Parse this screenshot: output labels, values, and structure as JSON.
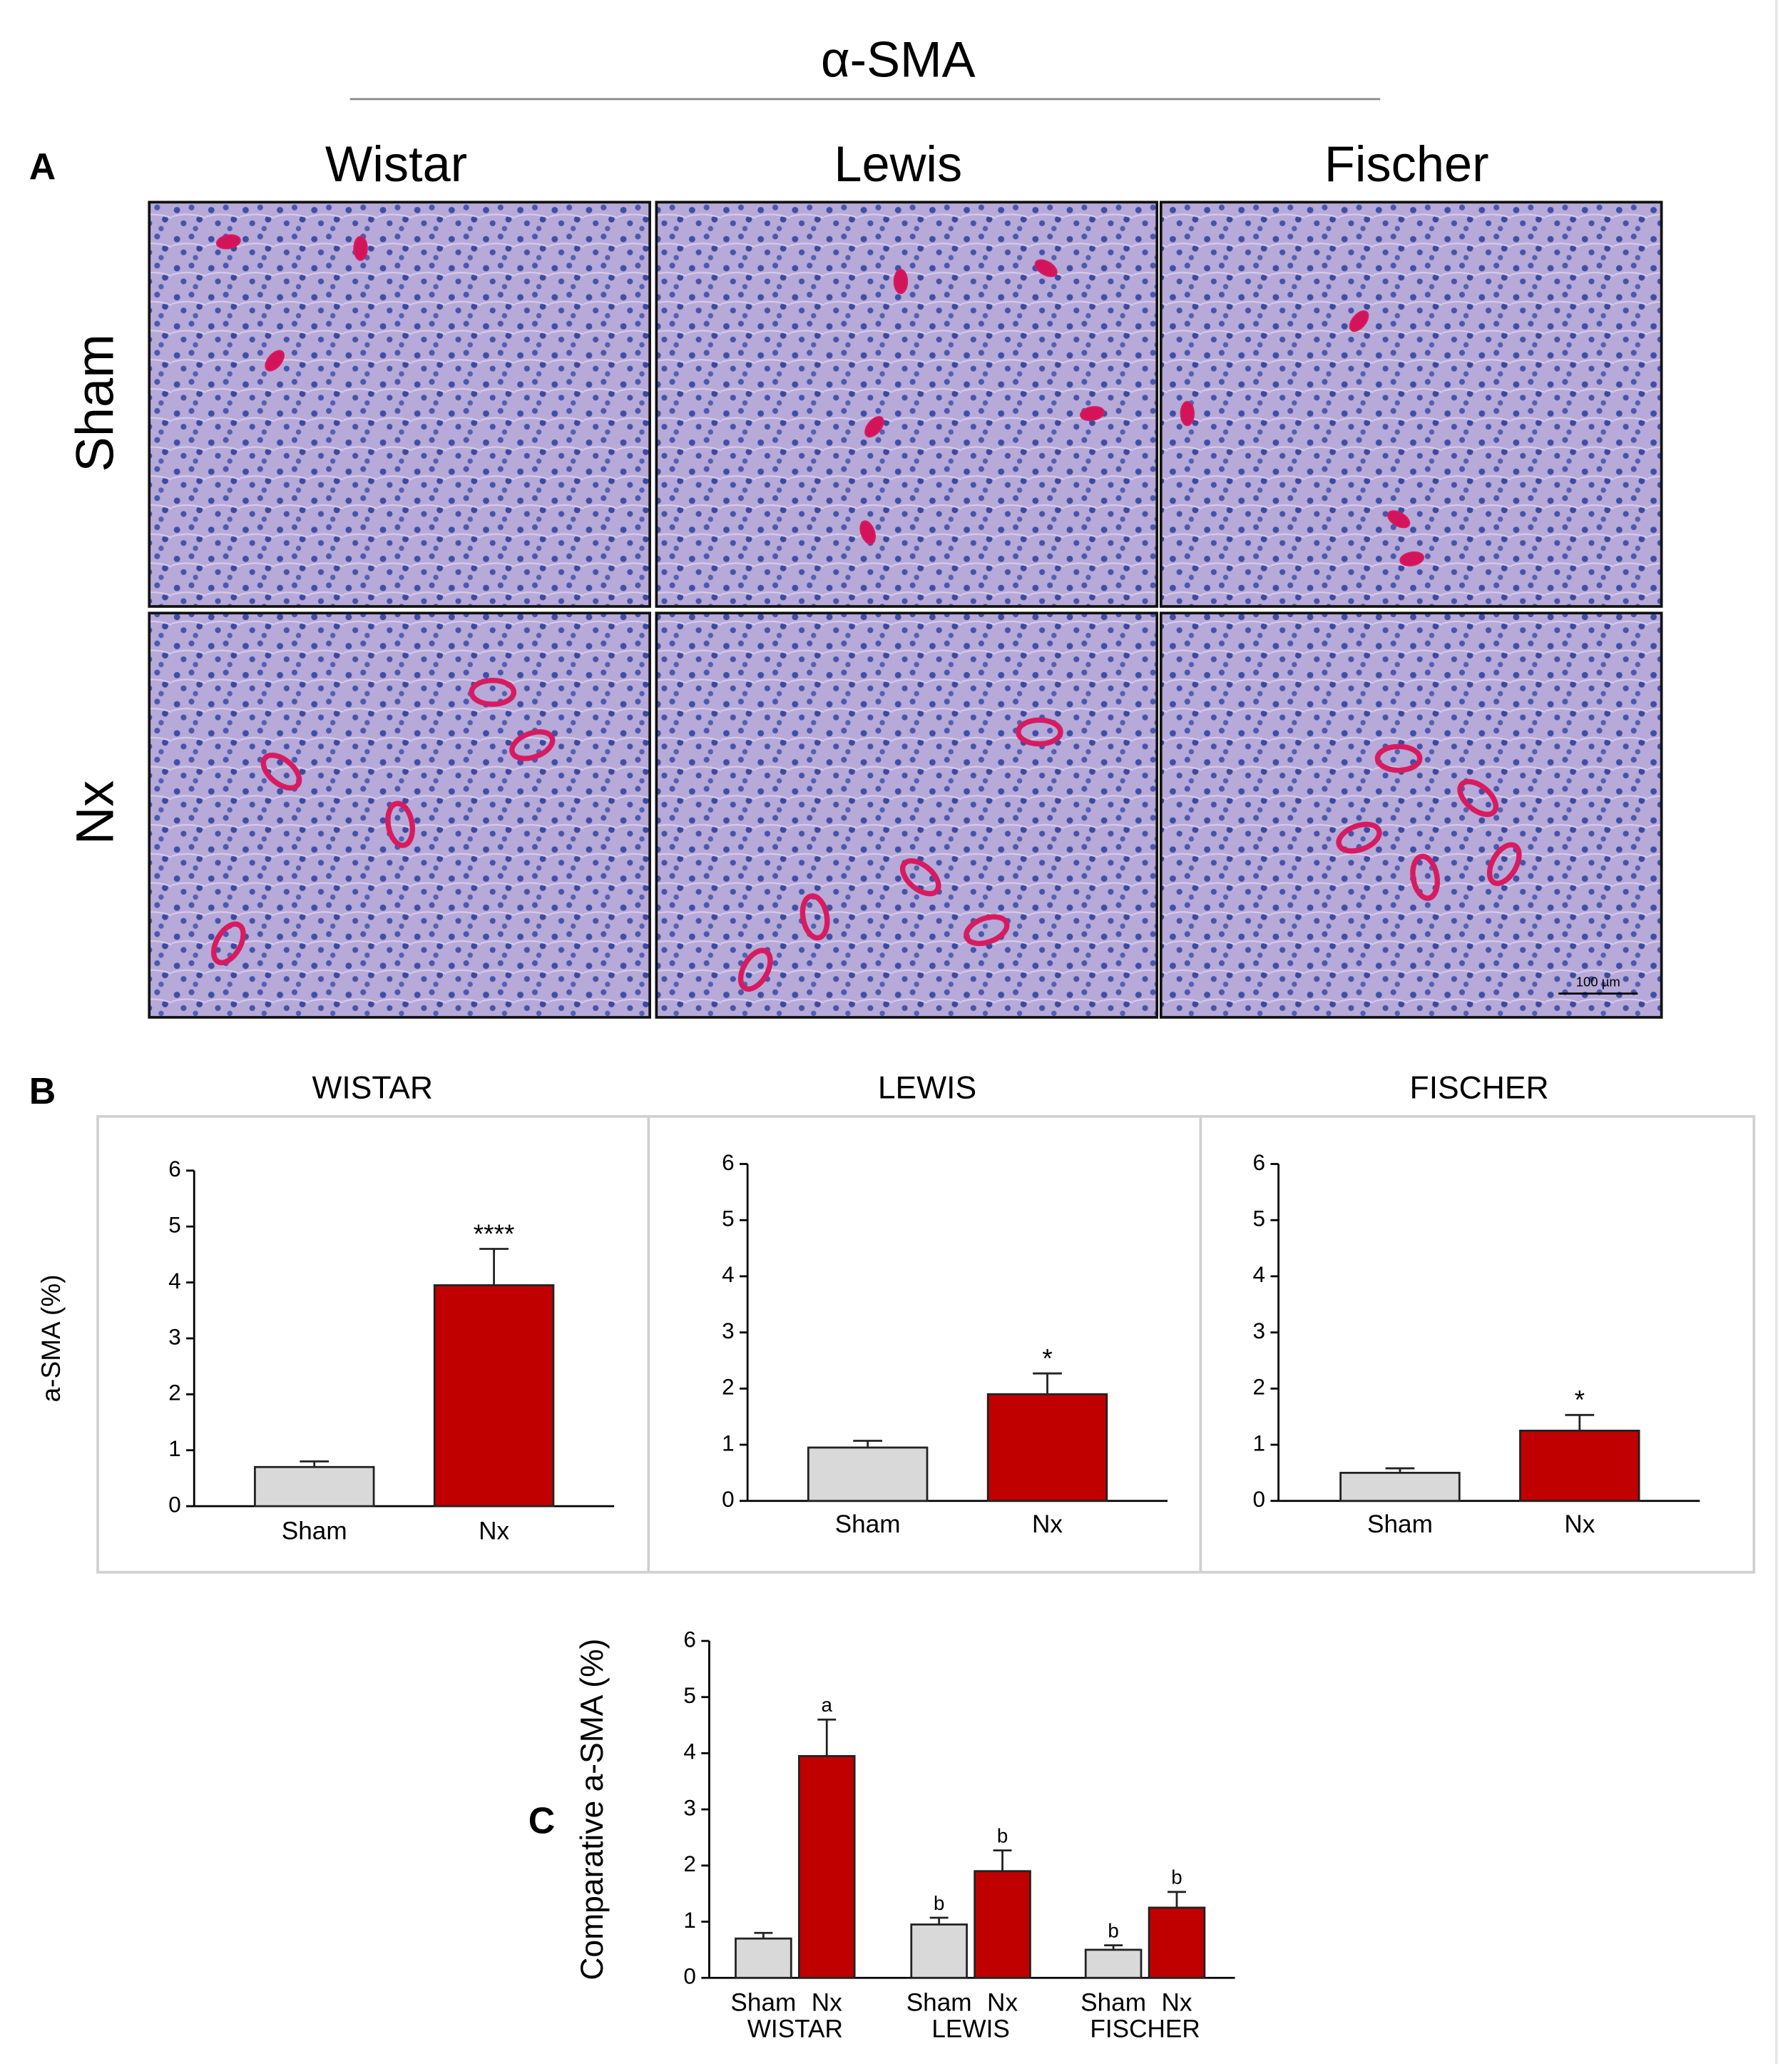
{
  "figure": {
    "title": "α-SMA",
    "panels": [
      "A",
      "B",
      "C"
    ],
    "columns": [
      "Wistar",
      "Lewis",
      "Fischer"
    ],
    "rows": [
      "Sham",
      "Nx"
    ],
    "scale_bar": "100 µm"
  },
  "chart_data": [
    {
      "type": "bar",
      "title": "WISTAR",
      "ylabel": "a-SMA (%)",
      "categories": [
        "Sham",
        "Nx"
      ],
      "values": [
        0.7,
        3.95
      ],
      "errors": [
        0.1,
        0.65
      ],
      "colors": [
        "#d9d9d9",
        "#c00000"
      ],
      "annotations": [
        null,
        "****"
      ],
      "ylim": [
        0,
        6
      ],
      "yticks": [
        0,
        1,
        2,
        3,
        4,
        5,
        6
      ]
    },
    {
      "type": "bar",
      "title": "LEWIS",
      "categories": [
        "Sham",
        "Nx"
      ],
      "values": [
        0.95,
        1.9
      ],
      "errors": [
        0.12,
        0.37
      ],
      "colors": [
        "#d9d9d9",
        "#c00000"
      ],
      "annotations": [
        null,
        "*"
      ],
      "ylim": [
        0,
        6
      ],
      "yticks": [
        0,
        1,
        2,
        3,
        4,
        5,
        6
      ]
    },
    {
      "type": "bar",
      "title": "FISCHER",
      "categories": [
        "Sham",
        "Nx"
      ],
      "values": [
        0.5,
        1.25
      ],
      "errors": [
        0.08,
        0.28
      ],
      "colors": [
        "#d9d9d9",
        "#c00000"
      ],
      "annotations": [
        null,
        "*"
      ],
      "ylim": [
        0,
        6
      ],
      "yticks": [
        0,
        1,
        2,
        3,
        4,
        5,
        6
      ]
    },
    {
      "type": "grouped_bar",
      "ylabel": "Comparative  a-SMA (%)",
      "categories": [
        "WISTAR",
        "LEWIS",
        "FISCHER"
      ],
      "series": [
        {
          "name": "Sham",
          "color": "#d9d9d9",
          "values": [
            0.7,
            0.95,
            0.5
          ],
          "errors": [
            0.1,
            0.12,
            0.08
          ],
          "annotations": [
            null,
            "b",
            "b"
          ]
        },
        {
          "name": "Nx",
          "color": "#c00000",
          "values": [
            3.95,
            1.9,
            1.25
          ],
          "errors": [
            0.65,
            0.37,
            0.28
          ],
          "annotations": [
            "a",
            "b",
            "b"
          ]
        }
      ],
      "ylim": [
        0,
        6
      ],
      "yticks": [
        0,
        1,
        2,
        3,
        4,
        5,
        6
      ]
    }
  ]
}
